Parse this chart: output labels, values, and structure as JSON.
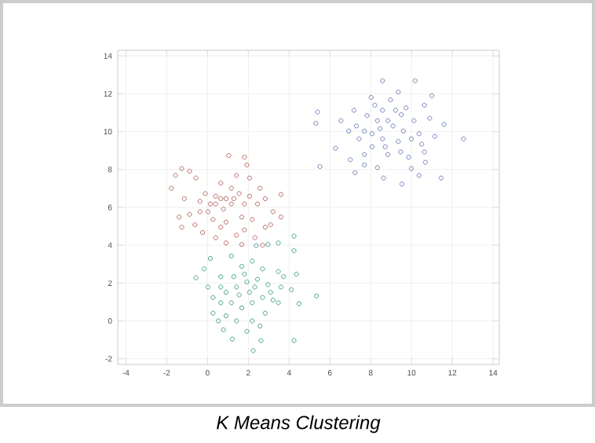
{
  "chart_data": {
    "type": "scatter",
    "title": "K Means Clustering",
    "xlim": [
      -4.4,
      14.3
    ],
    "ylim": [
      -2.3,
      14.3
    ],
    "xticks": [
      -4,
      -2,
      0,
      2,
      4,
      6,
      8,
      10,
      12,
      14
    ],
    "yticks": [
      -2,
      0,
      2,
      4,
      6,
      8,
      10,
      12,
      14
    ],
    "grid": true,
    "marker": "circle",
    "series": [
      {
        "color": "#5065a8",
        "x": [
          8.58,
          10.17,
          11.0,
          5.39,
          5.31,
          11.6,
          12.55,
          5.51,
          6.28,
          7.0,
          7.23,
          8.63,
          9.53,
          9.99,
          10.68,
          11.45,
          10.37,
          7.69,
          6.54,
          7.18,
          8.02,
          9.35,
          10.63,
          10.89,
          11.14,
          10.63,
          9.86,
          8.84,
          8.07,
          7.43,
          7.3,
          7.82,
          8.58,
          8.97,
          9.73,
          10.12,
          9.6,
          9.09,
          8.46,
          8.07,
          8.58,
          9.35,
          9.99,
          10.37,
          8.84,
          8.33,
          9.5,
          9.22,
          8.2,
          7.69,
          8.71,
          9.47,
          8.33,
          7.69,
          10.5,
          6.92
        ],
        "values": [
          12.69,
          12.69,
          11.9,
          11.04,
          10.44,
          10.38,
          9.62,
          8.16,
          9.12,
          8.52,
          7.83,
          7.55,
          7.23,
          8.05,
          8.38,
          7.55,
          7.69,
          8.24,
          10.58,
          11.13,
          11.81,
          12.09,
          11.4,
          10.71,
          9.75,
          8.93,
          8.65,
          8.79,
          9.2,
          9.62,
          10.3,
          10.85,
          11.13,
          11.68,
          11.26,
          10.58,
          10.03,
          10.3,
          10.16,
          9.89,
          9.62,
          9.48,
          9.62,
          9.89,
          10.58,
          10.58,
          10.9,
          11.13,
          11.4,
          10.03,
          9.2,
          8.93,
          8.1,
          8.79,
          9.34,
          10.03
        ]
      },
      {
        "color": "#a94a43",
        "x": [
          1.04,
          1.81,
          1.93,
          -1.26,
          -1.77,
          -1.57,
          -0.88,
          -0.57,
          -1.14,
          -1.39,
          -1.26,
          -0.37,
          0.4,
          0.65,
          1.42,
          2.06,
          2.57,
          2.45,
          2.83,
          3.6,
          3.21,
          2.83,
          3.6,
          2.19,
          1.68,
          1.42,
          1.68,
          0.91,
          0.4,
          -0.24,
          -0.62,
          0.02,
          0.14,
          0.78,
          1.17,
          1.81,
          2.06,
          1.55,
          1.17,
          0.65,
          -0.11,
          -0.37,
          0.27,
          0.91,
          1.81,
          2.32,
          3.09,
          1.29,
          0.91,
          0.4,
          -0.88,
          0.65,
          2.7
        ],
        "values": [
          8.74,
          8.65,
          8.24,
          8.05,
          7.01,
          7.69,
          7.91,
          7.55,
          6.46,
          5.49,
          4.95,
          5.77,
          6.59,
          7.28,
          7.69,
          7.55,
          7.01,
          6.18,
          6.46,
          6.68,
          5.77,
          4.95,
          5.49,
          5.36,
          5.49,
          4.53,
          4.04,
          4.12,
          4.4,
          4.67,
          5.08,
          5.77,
          6.18,
          5.91,
          6.18,
          6.18,
          6.59,
          6.73,
          7.01,
          6.46,
          6.73,
          6.32,
          5.36,
          5.22,
          4.81,
          4.4,
          5.08,
          6.46,
          6.46,
          6.18,
          5.63,
          4.95,
          4.0
        ]
      },
      {
        "color": "#1f8a78",
        "x": [
          4.24,
          4.24,
          2.96,
          3.47,
          2.39,
          -0.57,
          -0.16,
          0.14,
          1.17,
          4.36,
          4.11,
          4.49,
          5.34,
          0.78,
          1.22,
          2.24,
          2.62,
          4.24,
          1.93,
          0.27,
          0.27,
          0.02,
          0.65,
          1.68,
          2.19,
          2.7,
          3.47,
          3.6,
          3.21,
          3.47,
          2.83,
          2.19,
          1.42,
          0.91,
          0.65,
          0.91,
          1.42,
          1.93,
          2.45,
          2.96,
          3.09,
          2.7,
          2.19,
          1.68,
          1.17,
          1.55,
          2.06,
          2.32,
          1.81,
          1.29,
          0.65,
          0.53,
          2.57,
          3.73
        ],
        "values": [
          4.48,
          3.71,
          4.04,
          4.12,
          3.98,
          2.28,
          2.75,
          3.3,
          3.43,
          2.47,
          1.65,
          0.91,
          1.32,
          -0.47,
          -0.96,
          -1.57,
          -1.04,
          -1.04,
          -0.55,
          0.41,
          1.24,
          1.79,
          2.34,
          2.88,
          3.16,
          2.75,
          2.61,
          1.79,
          1.1,
          0.96,
          0.41,
          0.0,
          0.0,
          0.27,
          0.96,
          1.51,
          1.79,
          2.06,
          2.2,
          1.92,
          1.51,
          1.24,
          0.96,
          0.69,
          0.96,
          1.37,
          1.51,
          1.79,
          2.47,
          2.34,
          1.79,
          0.0,
          -0.27,
          2.34
        ]
      }
    ]
  }
}
